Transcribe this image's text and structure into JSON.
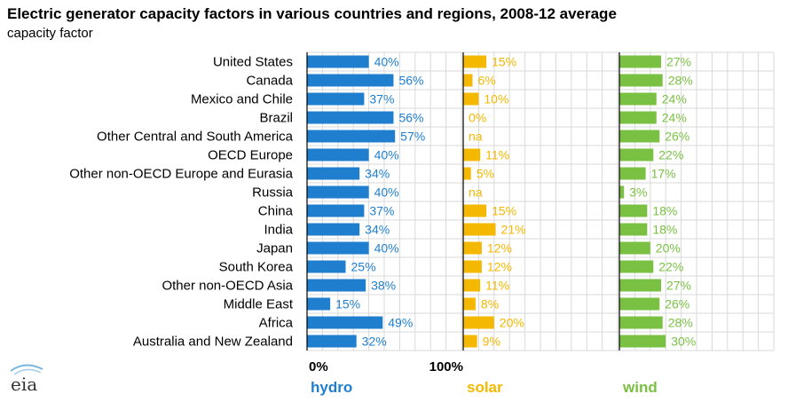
{
  "header": {
    "title": "Electric generator capacity factors in various countries and regions, 2008-12 average",
    "subtitle": "capacity factor"
  },
  "logo": {
    "text": "eia"
  },
  "colors": {
    "hydro": "#1f7fce",
    "solar": "#f5b800",
    "wind": "#7ac143"
  },
  "chart_data": {
    "type": "bar",
    "orientation": "horizontal",
    "categories": [
      "United States",
      "Canada",
      "Mexico and Chile",
      "Brazil",
      "Other Central and South America",
      "OECD Europe",
      "Other non-OECD Europe and Eurasia",
      "Russia",
      "China",
      "India",
      "Japan",
      "South Korea",
      "Other non-OECD Asia",
      "Middle East",
      "Africa",
      "Australia and New Zealand"
    ],
    "series": [
      {
        "name": "hydro",
        "values": [
          40,
          56,
          37,
          56,
          57,
          40,
          34,
          40,
          37,
          34,
          40,
          25,
          38,
          15,
          49,
          32
        ],
        "labels": [
          "40%",
          "56%",
          "37%",
          "56%",
          "57%",
          "40%",
          "34%",
          "40%",
          "37%",
          "34%",
          "40%",
          "25%",
          "38%",
          "15%",
          "49%",
          "32%"
        ]
      },
      {
        "name": "solar",
        "values": [
          15,
          6,
          10,
          0,
          null,
          11,
          5,
          null,
          15,
          21,
          12,
          12,
          11,
          8,
          20,
          9
        ],
        "labels": [
          "15%",
          "6%",
          "10%",
          "0%",
          "na",
          "11%",
          "5%",
          "na",
          "15%",
          "21%",
          "12%",
          "12%",
          "11%",
          "8%",
          "20%",
          "9%"
        ]
      },
      {
        "name": "wind",
        "values": [
          27,
          28,
          24,
          24,
          26,
          22,
          17,
          3,
          18,
          18,
          20,
          22,
          27,
          26,
          28,
          30
        ],
        "labels": [
          "27%",
          "28%",
          "24%",
          "24%",
          "26%",
          "22%",
          "17%",
          "3%",
          "18%",
          "18%",
          "20%",
          "22%",
          "27%",
          "26%",
          "28%",
          "30%"
        ]
      }
    ],
    "xlim": [
      0,
      100
    ],
    "tick_labels": [
      "0%",
      "100%"
    ],
    "grid": true
  }
}
